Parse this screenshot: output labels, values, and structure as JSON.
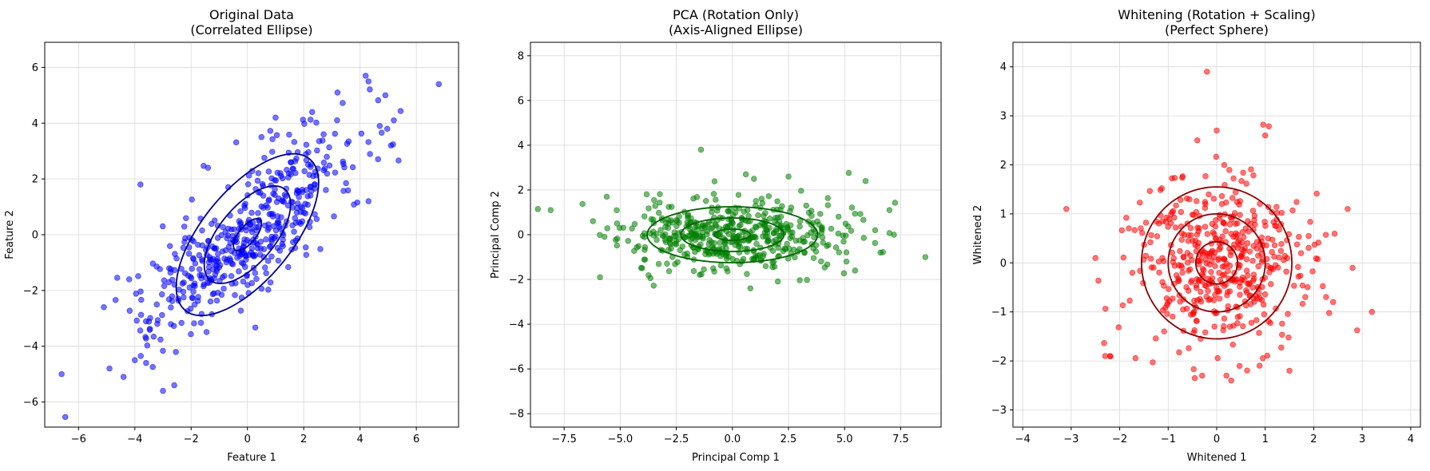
{
  "chart_data": [
    {
      "type": "scatter",
      "title": "Original Data\n(Correlated Ellipse)",
      "xlabel": "Feature 1",
      "ylabel": "Feature 2",
      "xlim": [
        -7.2,
        7.5
      ],
      "ylim": [
        -6.9,
        6.9
      ],
      "xticks": [
        -6,
        -4,
        -2,
        0,
        2,
        4,
        6
      ],
      "yticks": [
        -6,
        -4,
        -2,
        0,
        2,
        4,
        6
      ],
      "grid": true,
      "point_color": "#0000ff",
      "contour_color": "#00008b",
      "correlation": 0.78,
      "contours": [
        {
          "a": 0.7,
          "b": 0.3,
          "angle_deg": 51
        },
        {
          "a": 2.1,
          "b": 1.0,
          "angle_deg": 51
        },
        {
          "a": 3.5,
          "b": 1.6,
          "angle_deg": 51
        }
      ],
      "points": [
        [
          -6.6,
          -5.0
        ],
        [
          6.8,
          5.4
        ],
        [
          4.2,
          5.7
        ],
        [
          4.3,
          5.5
        ],
        [
          4.9,
          5.0
        ],
        [
          5.2,
          4.1
        ],
        [
          3.2,
          5.1
        ],
        [
          2.3,
          4.4
        ],
        [
          -3.8,
          1.8
        ],
        [
          -4.9,
          -4.8
        ],
        [
          -4.4,
          -5.1
        ],
        [
          -3.6,
          -4.6
        ],
        [
          -3.0,
          -5.6
        ],
        [
          -2.6,
          -5.4
        ],
        [
          -5.1,
          -2.6
        ],
        [
          -4.2,
          -1.6
        ],
        [
          -4.0,
          -4.5
        ],
        [
          4.3,
          1.2
        ],
        [
          5.1,
          3.2
        ],
        [
          4.7,
          3.9
        ],
        [
          1.0,
          4.2
        ],
        [
          -1.4,
          2.4
        ],
        [
          -3.2,
          -3.2
        ],
        [
          0.5,
          3.5
        ]
      ],
      "random_points": {
        "count": 480,
        "sd_x": 1.8,
        "sd_y": 1.8,
        "seed": 7
      }
    },
    {
      "type": "scatter",
      "title": "PCA (Rotation Only)\n(Axis-Aligned Ellipse)",
      "xlabel": "Principal Comp 1",
      "ylabel": "Principal Comp 2",
      "xlim": [
        -9.0,
        9.3
      ],
      "ylim": [
        -8.6,
        8.6
      ],
      "xticks": [
        -7.5,
        -5.0,
        -2.5,
        0.0,
        2.5,
        5.0,
        7.5
      ],
      "yticks": [
        -8,
        -6,
        -4,
        -2,
        0,
        2,
        4,
        6,
        8
      ],
      "grid": true,
      "point_color": "#008000",
      "contour_color": "#006400",
      "correlation": 0,
      "contours": [
        {
          "a": 0.8,
          "b": 0.25,
          "angle_deg": 0
        },
        {
          "a": 2.3,
          "b": 0.75,
          "angle_deg": 0
        },
        {
          "a": 3.8,
          "b": 1.25,
          "angle_deg": 0
        }
      ],
      "points": [
        [
          -8.1,
          1.1
        ],
        [
          8.6,
          -1.0
        ],
        [
          -1.4,
          3.8
        ],
        [
          7.2,
          0.0
        ],
        [
          7.0,
          1.1
        ],
        [
          -5.9,
          -1.9
        ],
        [
          0.6,
          2.7
        ],
        [
          2.5,
          2.6
        ],
        [
          -5.6,
          1.7
        ],
        [
          6.6,
          -0.8
        ],
        [
          0.8,
          -2.4
        ]
      ],
      "random_points": {
        "count": 480,
        "sd_x": 2.5,
        "sd_y": 0.8,
        "seed": 11
      }
    },
    {
      "type": "scatter",
      "title": "Whitening (Rotation + Scaling)\n(Perfect Sphere)",
      "xlabel": "Whitened 1",
      "ylabel": "Whitened 2",
      "xlim": [
        -4.2,
        4.2
      ],
      "ylim": [
        -3.35,
        4.5
      ],
      "xticks": [
        -4,
        -3,
        -2,
        -1,
        0,
        1,
        2,
        3,
        4
      ],
      "yticks": [
        -3,
        -2,
        -1,
        0,
        1,
        2,
        3,
        4
      ],
      "grid": true,
      "point_color": "#ff0000",
      "contour_color": "#8b0000",
      "correlation": 0,
      "contours": [
        {
          "a": 0.43,
          "b": 0.43,
          "angle_deg": 0
        },
        {
          "a": 1.0,
          "b": 1.0,
          "angle_deg": 0
        },
        {
          "a": 1.55,
          "b": 1.55,
          "angle_deg": 0
        }
      ],
      "points": [
        [
          -0.2,
          3.9
        ],
        [
          -3.1,
          1.1
        ],
        [
          3.2,
          -1.0
        ],
        [
          0.0,
          2.7
        ],
        [
          1.0,
          2.6
        ],
        [
          2.7,
          1.1
        ],
        [
          -0.4,
          2.5
        ],
        [
          -2.3,
          -1.9
        ],
        [
          -2.2,
          -1.9
        ],
        [
          0.2,
          -2.3
        ],
        [
          0.3,
          -2.4
        ],
        [
          -0.3,
          -2.3
        ],
        [
          2.4,
          -0.8
        ],
        [
          1.5,
          -2.2
        ],
        [
          2.8,
          -0.1
        ],
        [
          -2.5,
          0.1
        ]
      ],
      "random_points": {
        "count": 480,
        "sd_x": 0.85,
        "sd_y": 0.85,
        "seed": 23
      }
    }
  ]
}
